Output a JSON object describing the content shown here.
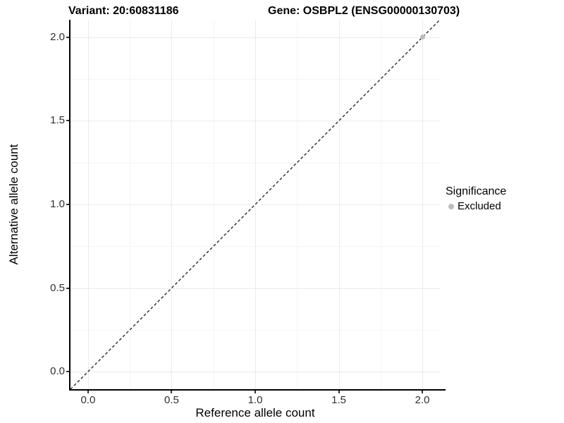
{
  "header": {
    "variant_title": "Variant: 20:60831186",
    "gene_title": "Gene: OSBPL2 (ENSG00000130703)"
  },
  "legend": {
    "title": "Significance",
    "items": [
      {
        "label": "Excluded",
        "marker_color": "#bdbdbd"
      }
    ]
  },
  "colors": {
    "background": "#ffffff",
    "grid_major": "#ebebeb",
    "grid_minor": "#f5f5f5",
    "axis_line": "#000000",
    "tick_mark": "#333333",
    "tick_label": "#303030",
    "reference_line": "#1a1a1a",
    "point": "#bdbdbd"
  },
  "chart_data": {
    "type": "scatter",
    "title": "Variant: 20:60831186        Gene: OSBPL2 (ENSG00000130703)",
    "xlabel": "Reference allele count",
    "ylabel": "Alternative allele count",
    "xlim": [
      -0.105,
      2.105
    ],
    "ylim": [
      -0.105,
      2.105
    ],
    "xticks": [
      0.0,
      0.5,
      1.0,
      1.5,
      2.0
    ],
    "xtick_labels": [
      "0.0",
      "0.5",
      "1.0",
      "1.5",
      "2.0"
    ],
    "yticks": [
      0.0,
      0.5,
      1.0,
      1.5,
      2.0
    ],
    "ytick_labels": [
      "0.0",
      "0.5",
      "1.0",
      "1.5",
      "2.0"
    ],
    "minor_xticks": [
      0.25,
      0.75,
      1.25,
      1.75
    ],
    "minor_yticks": [
      0.25,
      0.75,
      1.25,
      1.75
    ],
    "grid": true,
    "legend_position": "right",
    "legend_title": "Significance",
    "series": [
      {
        "name": "Excluded",
        "color": "#bdbdbd",
        "points": [
          {
            "x": 2.0,
            "y": 2.0
          }
        ]
      }
    ],
    "reference_line": {
      "kind": "identity",
      "slope": 1,
      "intercept": 0,
      "linestyle": "dashed",
      "color": "#1a1a1a"
    }
  }
}
